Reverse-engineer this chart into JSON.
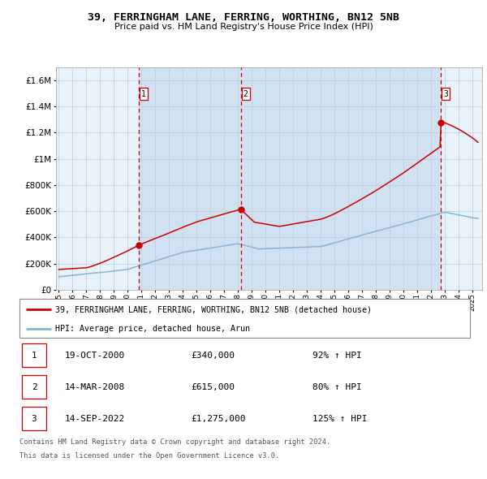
{
  "title": "39, FERRINGHAM LANE, FERRING, WORTHING, BN12 5NB",
  "subtitle": "Price paid vs. HM Land Registry's House Price Index (HPI)",
  "legend_line1": "39, FERRINGHAM LANE, FERRING, WORTHING, BN12 5NB (detached house)",
  "legend_line2": "HPI: Average price, detached house, Arun",
  "footer1": "Contains HM Land Registry data © Crown copyright and database right 2024.",
  "footer2": "This data is licensed under the Open Government Licence v3.0.",
  "transactions": [
    {
      "num": 1,
      "date": "19-OCT-2000",
      "price": 340000,
      "price_str": "£340,000",
      "pct": "92%",
      "dir": "↑",
      "x": 2000.8
    },
    {
      "num": 2,
      "date": "14-MAR-2008",
      "price": 615000,
      "price_str": "£615,000",
      "pct": "80%",
      "dir": "↑",
      "x": 2008.2
    },
    {
      "num": 3,
      "date": "14-SEP-2022",
      "price": 1275000,
      "price_str": "£1,275,000",
      "pct": "125%",
      "dir": "↑",
      "x": 2022.7
    }
  ],
  "hpi_color": "#8ab4d4",
  "sale_color": "#cc0000",
  "vline_color": "#cc0000",
  "shade_color": "#ccdff0",
  "plot_bg": "#e8f2fa",
  "grid_color": "#c0d0e0",
  "ylim": [
    0,
    1700000
  ],
  "xlim_start": 1994.8,
  "xlim_end": 2025.7,
  "yticks": [
    0,
    200000,
    400000,
    600000,
    800000,
    1000000,
    1200000,
    1400000,
    1600000
  ]
}
